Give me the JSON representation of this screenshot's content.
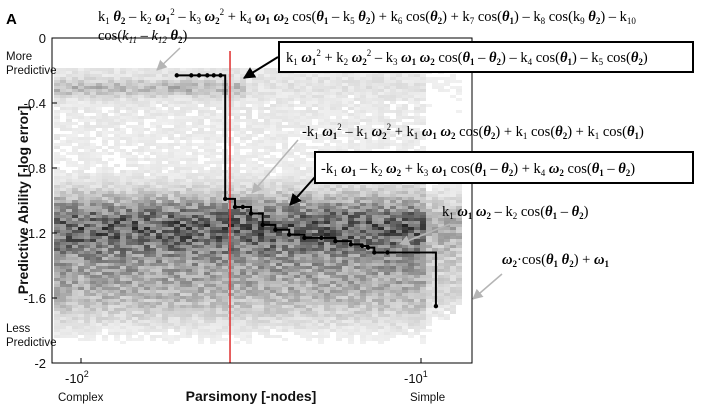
{
  "chart_data": {
    "type": "heatmap",
    "panel_label": "A",
    "xlabel": "Parsimony [-nodes]",
    "ylabel": "Predictive Ability [-log error]",
    "x_tick_labels": [
      "-10",
      "-10"
    ],
    "x_tick_exponents": [
      "2",
      "1"
    ],
    "x_end_labels": [
      "Complex",
      "Simple"
    ],
    "y_end_labels": {
      "top": [
        "More",
        "Predictive"
      ],
      "bottom": [
        "Less",
        "Predictive"
      ]
    },
    "ylim": [
      -2,
      0
    ],
    "yticks": [
      0,
      -0.4,
      -0.8,
      -1.2,
      -1.6,
      -2
    ],
    "ytick_labels": [
      "0",
      "-0.4",
      "-0.8",
      "-1.2",
      "-1.6",
      "-2"
    ],
    "pareto_front": [
      {
        "x": -44,
        "y": -0.23
      },
      {
        "x": -40,
        "y": -0.23
      },
      {
        "x": -38,
        "y": -0.23
      },
      {
        "x": -36,
        "y": -0.23
      },
      {
        "x": -34.5,
        "y": -0.23
      },
      {
        "x": -33,
        "y": -0.23
      },
      {
        "x": -32,
        "y": -0.99
      },
      {
        "x": -30,
        "y": -1.04
      },
      {
        "x": -28.5,
        "y": -1.04
      },
      {
        "x": -27,
        "y": -1.08
      },
      {
        "x": -25,
        "y": -1.15
      },
      {
        "x": -23,
        "y": -1.18
      },
      {
        "x": -21,
        "y": -1.21
      },
      {
        "x": -19,
        "y": -1.23
      },
      {
        "x": -17,
        "y": -1.23
      },
      {
        "x": -15.5,
        "y": -1.25
      },
      {
        "x": -14,
        "y": -1.27
      },
      {
        "x": -13,
        "y": -1.28
      },
      {
        "x": -12.5,
        "y": -1.29
      },
      {
        "x": -12,
        "y": -1.32
      },
      {
        "x": -11,
        "y": -1.32
      },
      {
        "x": -8,
        "y": -1.65
      }
    ],
    "red_line_x": -31,
    "annotations": [
      "k1θ2 − k2ω1² − k3ω2² + k4ω1ω2cos(θ1 − k5θ2) + k6cos(θ2) + k7cos(θ1) − k8cos(k9θ2) − k10 cos(k11 − k12θ2)",
      "k1ω1² + k2ω2² − k3ω1ω2cos(θ1 − θ2) − k4cos(θ1) − k5cos(θ2)",
      "-k1ω1² − k1ω2² + k1ω1ω2cos(θ2) + k1cos(θ2) + k1cos(θ1)",
      "-k1ω1 − k2ω2 + k3ω1cos(θ1 − θ2) + k4ω2cos(θ1 − θ2)",
      "k1ω1ω2 − k2cos(θ1 − θ2)",
      "ω2·cos(θ1θ2) + ω1"
    ],
    "grid": false,
    "legend": "none"
  },
  "colors": {
    "front": "#000000",
    "red_line": "#e03a3a",
    "arrow": "#b5b5b5",
    "heat_max": "#141414"
  }
}
